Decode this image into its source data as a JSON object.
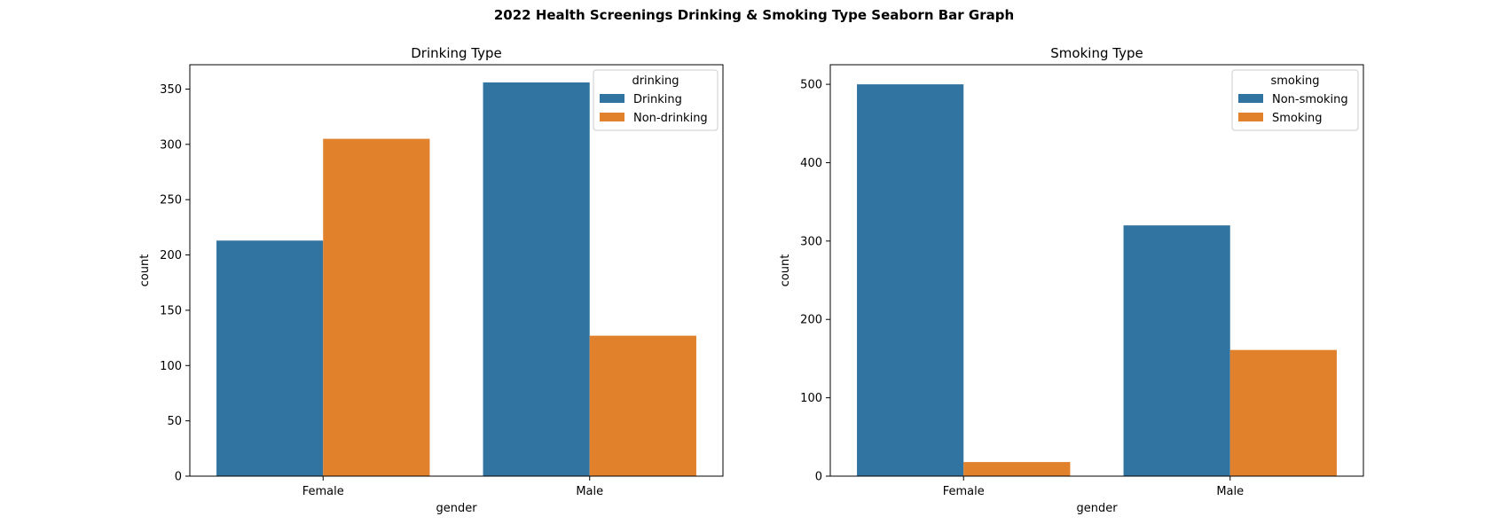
{
  "figure": {
    "suptitle": "2022 Health Screenings Drinking & Smoking Type Seaborn Bar Graph"
  },
  "chart_data": [
    {
      "type": "bar",
      "title": "Drinking Type",
      "xlabel": "gender",
      "ylabel": "count",
      "categories": [
        "Female",
        "Male"
      ],
      "ylim": [
        0,
        372
      ],
      "yticks": [
        0,
        50,
        100,
        150,
        200,
        250,
        300,
        350
      ],
      "legend_title": "drinking",
      "legend_position": "top-right",
      "series": [
        {
          "name": "Drinking",
          "color": "#3274a1",
          "values": [
            213,
            356
          ]
        },
        {
          "name": "Non-drinking",
          "color": "#e1812c",
          "values": [
            305,
            127
          ]
        }
      ]
    },
    {
      "type": "bar",
      "title": "Smoking Type",
      "xlabel": "gender",
      "ylabel": "count",
      "categories": [
        "Female",
        "Male"
      ],
      "ylim": [
        0,
        525
      ],
      "yticks": [
        0,
        100,
        200,
        300,
        400,
        500
      ],
      "legend_title": "smoking",
      "legend_position": "top-right",
      "series": [
        {
          "name": "Non-smoking",
          "color": "#3274a1",
          "values": [
            500,
            320
          ]
        },
        {
          "name": "Smoking",
          "color": "#e1812c",
          "values": [
            18,
            161
          ]
        }
      ]
    }
  ]
}
